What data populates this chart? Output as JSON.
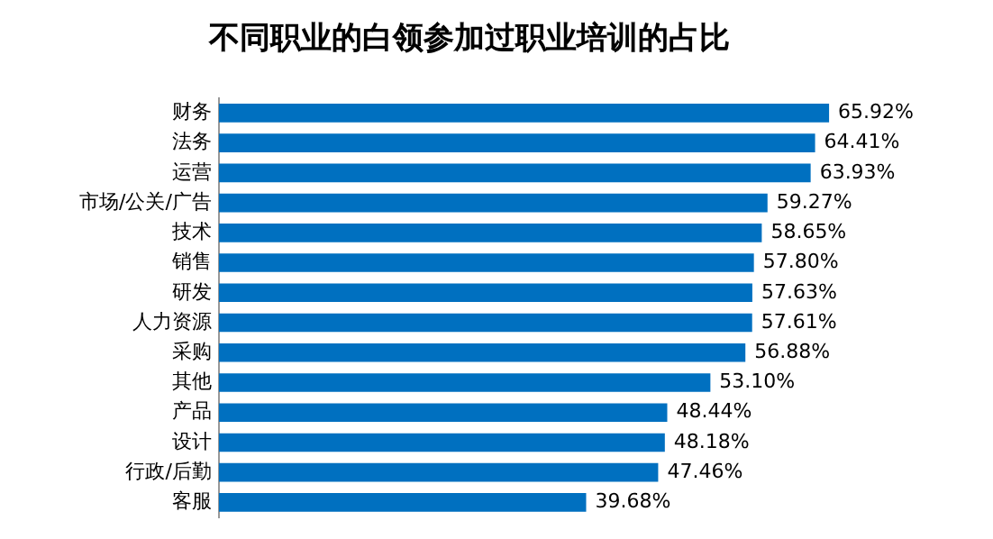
{
  "chart_data": {
    "type": "bar",
    "orientation": "horizontal",
    "title": "不同职业的白领参加过职业培训的占比",
    "categories": [
      "财务",
      "法务",
      "运营",
      "市场/公关/广告",
      "技术",
      "销售",
      "研发",
      "人力资源",
      "采购",
      "其他",
      "产品",
      "设计",
      "行政/后勤",
      "客服"
    ],
    "values": [
      65.92,
      64.41,
      63.93,
      59.27,
      58.65,
      57.8,
      57.63,
      57.61,
      56.88,
      53.1,
      48.44,
      48.18,
      47.46,
      39.68
    ],
    "value_labels": [
      "65.92%",
      "64.41%",
      "63.93%",
      "59.27%",
      "58.65%",
      "57.80%",
      "57.63%",
      "57.61%",
      "56.88%",
      "53.10%",
      "48.44%",
      "48.18%",
      "47.46%",
      "39.68%"
    ],
    "color": "#0070c0",
    "legend": false
  }
}
